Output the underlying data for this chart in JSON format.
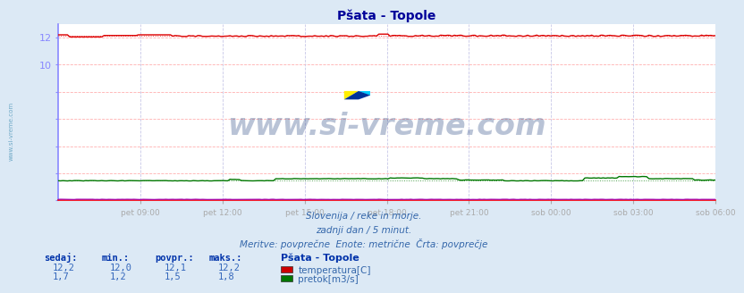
{
  "title": "Pšata - Topole",
  "bg_color": "#dce9f5",
  "plot_bg_color": "#ffffff",
  "grid_color_h": "#ffb0b0",
  "grid_color_v": "#c8c8e8",
  "left_spine_color": "#8888ff",
  "bottom_spine_color": "#ff0000",
  "xlabel_color": "#0000cc",
  "title_color": "#000099",
  "ylim": [
    0,
    13.0
  ],
  "yticks": [
    10,
    12
  ],
  "n_points": 288,
  "temp_color": "#dd0000",
  "flow_color": "#007700",
  "height_color": "#9900bb",
  "x_tick_labels": [
    "pet 09:00",
    "pet 12:00",
    "pet 15:00",
    "pet 18:00",
    "pet 21:00",
    "sob 00:00",
    "sob 03:00",
    "sob 06:00"
  ],
  "watermark": "www.si-vreme.com",
  "watermark_color": "#1a3a7a",
  "watermark_alpha": 0.3,
  "sub_text1": "Slovenija / reke in morje.",
  "sub_text2": "zadnji dan / 5 minut.",
  "sub_text3": "Meritve: povprečne  Enote: metrične  Črta: povprečje",
  "legend_title": "Pšata - Topole",
  "legend_items": [
    {
      "label": "temperatura[C]",
      "color": "#cc0000"
    },
    {
      "label": "pretok[m3/s]",
      "color": "#007700"
    }
  ],
  "stats_headers": [
    "sedaj:",
    "min.:",
    "povpr.:",
    "maks.:"
  ],
  "stats_temp": [
    "12,2",
    "12,0",
    "12,1",
    "12,2"
  ],
  "stats_flow": [
    "1,7",
    "1,2",
    "1,5",
    "1,8"
  ],
  "left_label": "www.si-vreme.com",
  "left_label_color": "#5599bb",
  "sub_text_color": "#3366aa",
  "stats_header_color": "#0033aa",
  "stats_value_color": "#3366bb",
  "legend_title_color": "#0033aa",
  "legend_label_color": "#3366aa"
}
